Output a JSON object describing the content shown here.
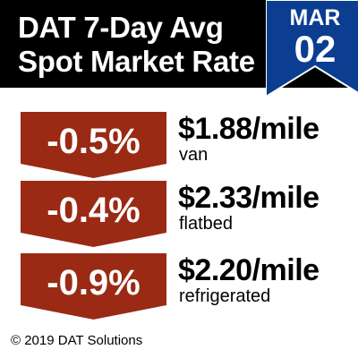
{
  "header": {
    "title_line1": "DAT 7-Day Avg",
    "title_line2": "Spot Market Rate",
    "background": "#000000"
  },
  "date_badge": {
    "month": "MAR",
    "day": "02",
    "color": "#0b3d91"
  },
  "rates": [
    {
      "change": "-0.5%",
      "rate": "$1.88/mile",
      "equipment": "van"
    },
    {
      "change": "-0.4%",
      "rate": "$2.33/mile",
      "equipment": "flatbed"
    },
    {
      "change": "-0.9%",
      "rate": "$2.20/mile",
      "equipment": "refrigerated"
    }
  ],
  "badge_color": "#9a2a14",
  "footer": "© 2019 DAT Solutions"
}
